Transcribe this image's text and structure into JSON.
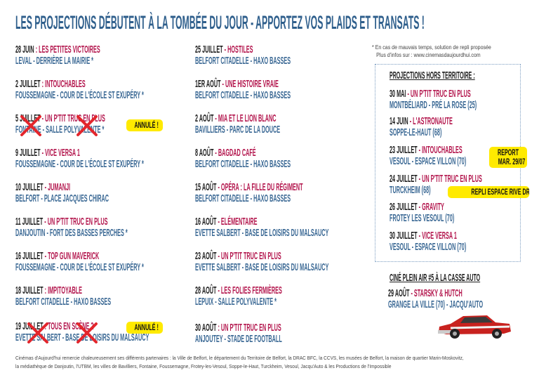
{
  "title": "LES PROJECTIONS DÉBUTENT À LA TOMBÉE DU JOUR  - APPORTEZ VOS PLAIDS ET TRANSATS !",
  "colors": {
    "title": "#2f5f8c",
    "date": "#1d1d1d",
    "film": "#b3164d",
    "place": "#3a6894",
    "badge": "#ffea00",
    "cross": "#e3262c"
  },
  "left_column": [
    {
      "date": "28 JUIN",
      "sep": " : ",
      "film": "LES PETITES VICTOIRES",
      "place": "LEVAL - DERRIÈRE LA MAIRIE *"
    },
    {
      "date": "2 JUILLET",
      "sep": " : ",
      "film": "INTOUCHABLES",
      "place": "FOUSSEMAGNE - COUR DE L'ÉCOLE ST EXUPÉRY *"
    },
    {
      "date": "5 JUILLET",
      "sep": " - ",
      "film": "UN P'TIT TRUC EN PLUS",
      "place": "FONTAINE - SALLE POLYVALENTE *",
      "cancelled": true,
      "badge": "ANNULÉ !"
    },
    {
      "date": "9 JUILLET",
      "sep": " - ",
      "film": "VICE VERSA 1",
      "place": "FOUSSEMAGNE - COUR DE L'ÉCOLE ST EXUPÉRY *"
    },
    {
      "date": "10 JUILLET",
      "sep": " - ",
      "film": "JUMANJI",
      "place": "BELFORT - PLACE JACQUES CHIRAC"
    },
    {
      "date": "11 JUILLET",
      "sep": " - ",
      "film": "UN P'TIT TRUC EN PLUS",
      "place": "DANJOUTIN - FORT DES BASSES PERCHES *"
    },
    {
      "date": "16 JUILLET",
      "sep": " - ",
      "film": "TOP GUN MAVERICK",
      "place": "FOUSSEMAGNE - COUR DE L'ÉCOLE ST EXUPÉRY *"
    },
    {
      "date": "18 JUILLET",
      "sep": "  : ",
      "film": "IMPITOYABLE",
      "place": "BELFORT CITADELLE - HAXO BASSES"
    },
    {
      "date": "19 JUILLET",
      "sep": " : ",
      "film": "TOUS EN SCÈNE 2",
      "place": "EVETTE SALBERT - BASE DE LOISIRS DU MALSAUCY",
      "cancelled": true,
      "badge": "ANNULÉ !"
    }
  ],
  "middle_column": [
    {
      "date": "25 JUILLET",
      "sep": " - ",
      "film": "HOSTILES",
      "place": "BELFORT CITADELLE - HAXO BASSES"
    },
    {
      "date": "1ER AOÛT",
      "sep": " - ",
      "film": "UNE HISTOIRE VRAIE",
      "place": "BELFORT CITADELLE - HAXO BASSES"
    },
    {
      "date": "2 AOÛT",
      "sep": " - ",
      "film": "MIA ET LE LION BLANC",
      "place": "BAVILLIERS - PARC DE LA DOUCE"
    },
    {
      "date": "8 AOÛT",
      "sep": " - ",
      "film": "BAGDAD CAFÉ",
      "place": "BELFORT CITADELLE - HAXO BASSES"
    },
    {
      "date": "15 AOÛT",
      "sep": " - ",
      "film": "OPÉRA : LA FILLE DU RÉGIMENT",
      "place": "BELFORT CITADELLE - HAXO BASSES"
    },
    {
      "date": "16 AOÛT",
      "sep": " - ",
      "film": "ELÉMENTAIRE",
      "place": "EVETTE SALBERT - BASE DE LOISIRS DU MALSAUCY"
    },
    {
      "date": "23 AOÛT",
      "sep": " - ",
      "film": "UN P'TIT TRUC EN PLUS",
      "place": "EVETTE SALBERT - BASE DE LOISIRS DU MALSAUCY"
    },
    {
      "date": "28 AOÛT",
      "sep": " - ",
      "film": "LES FOLIES FERMIÈRES",
      "place": "LEPUIX - SALLE POLYVALENTE *"
    },
    {
      "date": "30 AOÛT",
      "sep": " : ",
      "film": "UN P'TIT TRUC EN PLUS",
      "place": "ANJOUTEY - STADE DE FOOTBALL"
    }
  ],
  "note": {
    "line1": "* En cas de mauvais temps, solution de repli proposée",
    "line2": "Plus d'infos sur : www.cinemasdaujourdhui.com"
  },
  "out_of_territory": {
    "heading": "PROJECTIONS HORS TERRITOIRE :",
    "entries": [
      {
        "date": "30 MAI",
        "sep": " - ",
        "film": "UN P'TIT TRUC EN PLUS",
        "place": "MONTBÉLIARD - PRÉ LA ROSE (25)"
      },
      {
        "date": "14 JUIN",
        "sep": " - ",
        "film": "L'ASTRONAUTE",
        "place": "SOPPE-LE-HAUT (68)"
      },
      {
        "date": "23 JUILLET",
        "sep": " - ",
        "film": "INTOUCHABLES",
        "place": "VESOUL  - ESPACE VILLON (70)"
      },
      {
        "date": "24 JUILLET",
        "sep": " - ",
        "film": "UN P'TIT TRUC EN PLUS",
        "place": "TURCKHEIM (68)"
      },
      {
        "date": "26 JUILLET",
        "sep": " - ",
        "film": "GRAVITY",
        "place": "FROTEY LES VESOUL (70)"
      },
      {
        "date": "30 JUILLET",
        "sep": " - ",
        "film": "VICE VERSA 1",
        "place": "VESOUL - ESPACE VILLON (70)"
      }
    ],
    "report_badge": {
      "line1": "REPORT",
      "line2": "MAR. 29/07"
    },
    "repli_badge": "REPLI ESPACE RIVE DROITE"
  },
  "casse_auto": {
    "heading": "CINÉ PLEIN AIR #5 À LA CASSE AUTO",
    "entry": {
      "date": "29 AOÛT",
      "sep": " - ",
      "film": "STARSKY & HUTCH",
      "place": "GRANGE LA VILLE (70) - JACQU'AUTO"
    },
    "image": "red-car"
  },
  "footer": {
    "line1": "Cinémas d'Aujourd'hui remercie chaleureusement ses différents partenaires : la Ville de Belfort, le département du Territoire de Belfort, la DRAC BFC, la CCVS, les musées de Belfort, la maison de quartier Marin-Moskovitz,",
    "line2": "la médiathèque de Danjoutin, l'UTBM, les villes de Bavilliers, Fontaine, Foussemagne, Frotey-les-Vesoul, Soppe-le-Haut, Turckheim, Vesoul, Jacqu'Auto & les Productions de l'Impossible"
  }
}
